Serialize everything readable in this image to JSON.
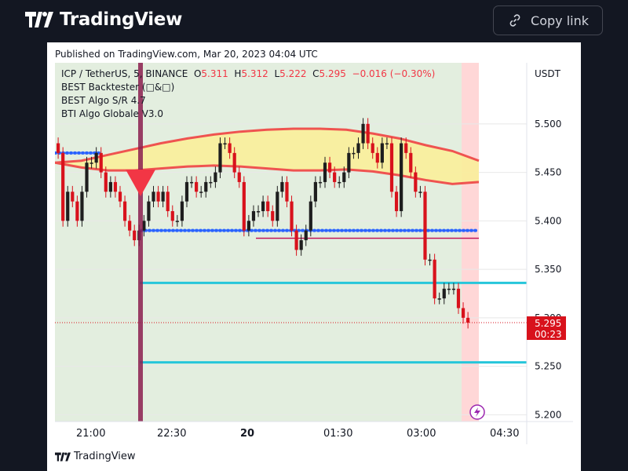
{
  "header": {
    "brand": "TradingView",
    "copy_link_label": "Copy link"
  },
  "card": {
    "published": "Published on TradingView.com, Mar 20, 2023 04:04 UTC",
    "footer_brand": "TradingView"
  },
  "legend": {
    "symbol": "ICP / TetherUS, 5, BINANCE",
    "o_label": "O",
    "o_value": "5.311",
    "h_label": "H",
    "h_value": "5.312",
    "l_label": "L",
    "l_value": "5.222",
    "c_label": "C",
    "c_value": "5.295",
    "change": "−0.016 (−0.30%)",
    "indicators": [
      "BEST Backtester (□&□)",
      "BEST Algo S/R 4.7",
      "BTI Algo Globale V3.0"
    ]
  },
  "colors": {
    "up": "#1e1e1e",
    "down": "#d8121c",
    "accent_red": "#f23645",
    "cyan": "#26c6da",
    "blue_dots": "#2962ff"
  },
  "chart_data": {
    "type": "line",
    "title": "ICP / TetherUS, 5, BINANCE",
    "currency": "USDT",
    "price_ticks": [
      "5.500",
      "5.450",
      "5.400",
      "5.350",
      "5.300",
      "5.250",
      "5.200"
    ],
    "time_ticks": [
      "21:00",
      "22:30",
      "20",
      "01:30",
      "03:00",
      "04:30"
    ],
    "ylim": [
      5.193,
      5.563
    ],
    "last_price": "5.295",
    "countdown": "00:23",
    "closes": [
      5.47,
      5.4,
      5.43,
      5.42,
      5.4,
      5.43,
      5.46,
      5.46,
      5.47,
      5.45,
      5.43,
      5.44,
      5.43,
      5.42,
      5.4,
      5.39,
      5.38,
      5.39,
      5.4,
      5.42,
      5.43,
      5.42,
      5.43,
      5.41,
      5.4,
      5.4,
      5.42,
      5.44,
      5.44,
      5.43,
      5.43,
      5.44,
      5.44,
      5.45,
      5.48,
      5.48,
      5.47,
      5.45,
      5.44,
      5.39,
      5.4,
      5.41,
      5.41,
      5.42,
      5.41,
      5.4,
      5.43,
      5.44,
      5.42,
      5.39,
      5.37,
      5.38,
      5.39,
      5.42,
      5.44,
      5.44,
      5.46,
      5.45,
      5.44,
      5.44,
      5.45,
      5.47,
      5.47,
      5.48,
      5.5,
      5.48,
      5.47,
      5.46,
      5.48,
      5.48,
      5.43,
      5.41,
      5.48,
      5.47,
      5.45,
      5.43,
      5.43,
      5.36,
      5.36,
      5.32,
      5.32,
      5.33,
      5.33,
      5.33,
      5.31,
      5.3,
      5.295
    ],
    "upper_band": [
      5.46,
      5.462,
      5.468,
      5.474,
      5.48,
      5.485,
      5.489,
      5.492,
      5.494,
      5.495,
      5.495,
      5.494,
      5.49,
      5.485,
      5.478,
      5.472,
      5.462
    ],
    "lower_band": [
      5.46,
      5.455,
      5.452,
      5.452,
      5.454,
      5.456,
      5.457,
      5.456,
      5.454,
      5.452,
      5.452,
      5.453,
      5.451,
      5.447,
      5.442,
      5.438,
      5.44
    ],
    "support_levels": [
      5.39,
      5.336,
      5.254
    ],
    "resistance_line": 5.47,
    "sr_line": 5.382
  }
}
